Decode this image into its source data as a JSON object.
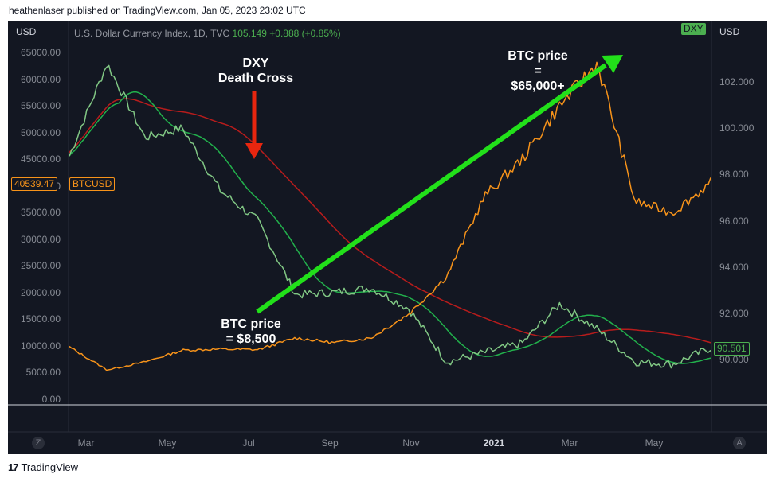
{
  "header": {
    "published": "heathenlaser published on TradingView.com, Jan 05, 2023 23:02 UTC"
  },
  "left_axis": {
    "unit": "USD",
    "ticks": [
      "65000.00",
      "60000.00",
      "55000.00",
      "50000.00",
      "45000.00",
      "40000.00",
      "35000.00",
      "30000.00",
      "25000.00",
      "20000.00",
      "15000.00",
      "10000.00",
      "5000.00",
      "0.00"
    ],
    "badge_value": "40539.47",
    "badge_symbol": "BTCUSD",
    "badge_color": "#f7931a"
  },
  "right_axis": {
    "unit": "USD",
    "ticks": [
      "102.000",
      "100.000",
      "98.000",
      "96.000",
      "94.000",
      "92.000",
      "90.000"
    ],
    "badge_value": "90.501",
    "badge_color": "#4caf50",
    "symbol_badge": "DXY"
  },
  "legend": {
    "name": "U.S. Dollar Currency Index, 1D, TVC",
    "price": "105.149",
    "change": "+0.888",
    "change_pct": "(+0.85%)"
  },
  "time_axis": {
    "labels": [
      "Mar",
      "May",
      "Jul",
      "Sep",
      "Nov",
      "2021",
      "Mar",
      "May"
    ],
    "year_label": "2021"
  },
  "annotations": {
    "death_cross": "DXY\nDeath Cross",
    "btc_high": "BTC price\n=\n$65,000+",
    "btc_low": "BTC price\n= $8,500"
  },
  "controls": {
    "left": "Z",
    "right": "A"
  },
  "footer": {
    "brand": "TradingView"
  },
  "colors": {
    "btc": "#f7931a",
    "dxy": "#81c784",
    "ma_short": "#22b14c",
    "ma_long": "#b71c1c",
    "arrow_green": "#22e01a",
    "arrow_red": "#e8260f",
    "background": "#131722"
  },
  "chart_data": {
    "type": "line",
    "series": [
      {
        "name": "BTCUSD",
        "axis": "left",
        "x": [
          "2020-02",
          "2020-03",
          "2020-04",
          "2020-05",
          "2020-06",
          "2020-07",
          "2020-08",
          "2020-09",
          "2020-10",
          "2020-11",
          "2020-12",
          "2021-01",
          "2021-02",
          "2021-03",
          "2021-04",
          "2021-05",
          "2021-06",
          "2021-07"
        ],
        "values": [
          9800,
          5500,
          7000,
          9200,
          9400,
          9300,
          11500,
          10600,
          11500,
          16000,
          23000,
          38000,
          45000,
          55000,
          63000,
          37000,
          35000,
          40539
        ]
      },
      {
        "name": "DXY",
        "axis": "right",
        "x": [
          "2020-02",
          "2020-03",
          "2020-04",
          "2020-05",
          "2020-06",
          "2020-07",
          "2020-08",
          "2020-09",
          "2020-10",
          "2020-11",
          "2020-12",
          "2021-01",
          "2021-02",
          "2021-03",
          "2021-04",
          "2021-05",
          "2021-06",
          "2021-07"
        ],
        "values": [
          98.8,
          102.8,
          99.6,
          100.0,
          97.3,
          96.0,
          92.8,
          92.9,
          93.1,
          92.2,
          89.9,
          90.3,
          90.7,
          92.4,
          91.3,
          89.9,
          89.8,
          90.501
        ]
      }
    ],
    "left_ylim": [
      0,
      67000
    ],
    "right_ylim": [
      89.5,
      103.5
    ],
    "grid": false
  }
}
